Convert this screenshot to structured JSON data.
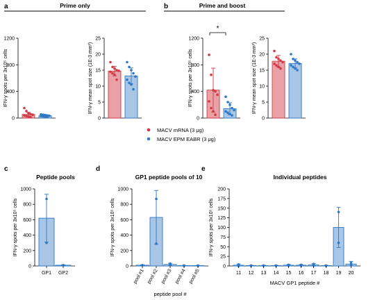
{
  "figure": {
    "colors": {
      "mrna": "#d03a45",
      "mrna_fill": "#e8a1a7",
      "epm": "#2f78c3",
      "epm_fill": "#a9c6e6"
    },
    "group_titles": {
      "prime_only": "Prime only",
      "prime_boost": "Prime and boost"
    },
    "panel_letters": {
      "a": "a",
      "b": "b",
      "c": "c",
      "d": "d",
      "e": "e"
    },
    "legend": [
      {
        "label": "MACV mRNA (3 μg)",
        "color": "#d03a45"
      },
      {
        "label": "MACV EPM EABR (3 μg)",
        "color": "#2f78c3"
      }
    ],
    "significance": "*"
  },
  "chart_data": [
    {
      "id": "a1",
      "type": "bar",
      "ylabel": "IFN-γ spots per 3x10⁵ cells",
      "ylim": [
        0,
        1200
      ],
      "yticks": [
        "0",
        "400",
        "800",
        "1200"
      ],
      "categories": [
        "MACV mRNA",
        "MACV EPM EABR"
      ],
      "values": [
        55,
        35
      ],
      "error": [
        [
          25,
          85
        ],
        [
          22,
          48
        ]
      ],
      "points": [
        [
          150,
          105,
          75,
          60,
          50,
          40,
          30,
          22,
          15
        ],
        [
          55,
          50,
          45,
          40,
          35,
          30,
          25,
          20,
          15
        ]
      ]
    },
    {
      "id": "a2",
      "type": "bar",
      "ylabel": "IFN-γ mean spot size (1E-3 mm²)",
      "ylim": [
        0,
        25
      ],
      "yticks": [
        "0",
        "5",
        "10",
        "15",
        "20",
        "25"
      ],
      "categories": [
        "MACV mRNA",
        "MACV EPM EABR"
      ],
      "values": [
        14.7,
        13.2
      ],
      "error": [
        [
          13.2,
          16.2
        ],
        [
          10.7,
          15.7
        ]
      ],
      "points": [
        [
          17.5,
          16.0,
          15.5,
          15.0,
          14.8,
          14.5,
          14.0,
          13.5,
          12.0
        ],
        [
          17.5,
          16.0,
          15.0,
          14.0,
          13.0,
          12.0,
          11.0,
          10.5,
          9.0
        ]
      ]
    },
    {
      "id": "b1",
      "type": "bar",
      "ylabel": "IFN-γ spots per 3x10⁵ cells",
      "ylim": [
        0,
        1200
      ],
      "yticks": [
        "0",
        "400",
        "800",
        "1200"
      ],
      "categories": [
        "MACV mRNA",
        "MACV EPM EABR"
      ],
      "values": [
        420,
        140
      ],
      "error": [
        [
          90,
          750
        ],
        [
          50,
          230
        ]
      ],
      "points": [
        [
          950,
          650,
          420,
          400,
          350,
          250,
          150,
          100,
          50
        ],
        [
          320,
          240,
          200,
          150,
          120,
          100,
          80,
          60,
          40
        ]
      ]
    },
    {
      "id": "b2",
      "type": "bar",
      "ylabel": "IFN-γ mean spot size (1E-3 mm²)",
      "ylim": [
        0,
        25
      ],
      "yticks": [
        "0",
        "5",
        "10",
        "15",
        "20",
        "25"
      ],
      "categories": [
        "MACV mRNA",
        "MACV EPM EABR"
      ],
      "values": [
        17.8,
        17.1
      ],
      "error": [
        [
          16.0,
          19.6
        ],
        [
          15.7,
          18.5
        ]
      ],
      "points": [
        [
          21.0,
          19.0,
          18.5,
          18.0,
          17.5,
          17.0,
          16.5,
          16.0,
          15.5
        ],
        [
          20.0,
          18.5,
          18.0,
          17.5,
          17.0,
          16.5,
          16.0,
          15.5,
          15.0
        ]
      ]
    },
    {
      "id": "c",
      "type": "bar",
      "title": "Peptide pools",
      "ylabel": "IFN-γ spots per 3x10⁵ cells",
      "ylim": [
        0,
        1000
      ],
      "yticks": [
        "0",
        "200",
        "400",
        "600",
        "800",
        "1000"
      ],
      "categories": [
        "GP1",
        "GP2"
      ],
      "values": [
        620,
        10
      ],
      "error": [
        [
          310,
          930
        ],
        [
          5,
          15
        ]
      ],
      "points": [
        [
          870,
          300
        ],
        [
          10,
          10
        ]
      ]
    },
    {
      "id": "d",
      "type": "bar",
      "title": "GP1 peptide pools of 10",
      "ylabel": "IFN-γ spots per 3x10⁵ cells",
      "xlabel": "peptide pool #",
      "ylim": [
        0,
        1000
      ],
      "yticks": [
        "0",
        "200",
        "400",
        "600",
        "800",
        "1000"
      ],
      "categories": [
        "pool #1",
        "pool #2",
        "pool #3",
        "pool #4",
        "pool #5"
      ],
      "values": [
        10,
        630,
        20,
        5,
        5
      ],
      "error": [
        [
          5,
          15
        ],
        [
          280,
          980
        ],
        [
          5,
          35
        ],
        [
          2,
          8
        ],
        [
          2,
          8
        ]
      ],
      "points": [
        [
          10,
          10
        ],
        [
          870,
          290
        ],
        [
          30,
          10
        ],
        [
          5,
          5
        ],
        [
          5,
          5
        ]
      ]
    },
    {
      "id": "e",
      "type": "bar",
      "title": "Individual peptides",
      "ylabel": "IFN-γ spots per 3x10⁵ cells",
      "xlabel": "MACV GP1 peptide #",
      "ylim": [
        0,
        200
      ],
      "yticks": [
        "0",
        "25",
        "50",
        "75",
        "100",
        "125",
        "150",
        "175",
        "200"
      ],
      "categories": [
        "11",
        "12",
        "13",
        "14",
        "15",
        "16",
        "17",
        "18",
        "19",
        "20"
      ],
      "values": [
        2,
        1,
        1,
        1,
        2,
        2,
        3,
        1,
        100,
        5
      ],
      "error": [
        [
          0,
          5
        ],
        [
          0,
          2
        ],
        [
          0,
          2
        ],
        [
          0,
          2
        ],
        [
          0,
          4
        ],
        [
          0,
          4
        ],
        [
          0,
          6
        ],
        [
          0,
          2
        ],
        [
          48,
          152
        ],
        [
          0,
          12
        ]
      ],
      "points": [
        [
          4,
          0
        ],
        [
          1,
          1
        ],
        [
          1,
          1
        ],
        [
          1,
          1
        ],
        [
          3,
          1
        ],
        [
          3,
          1
        ],
        [
          5,
          1
        ],
        [
          1,
          1
        ],
        [
          140,
          60
        ],
        [
          8,
          2
        ]
      ]
    }
  ]
}
